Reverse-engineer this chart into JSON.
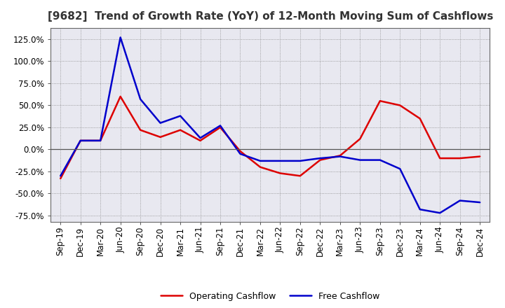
{
  "title": "[9682]  Trend of Growth Rate (YoY) of 12-Month Moving Sum of Cashflows",
  "labels": [
    "Sep-19",
    "Dec-19",
    "Mar-20",
    "Jun-20",
    "Sep-20",
    "Dec-20",
    "Mar-21",
    "Jun-21",
    "Sep-21",
    "Dec-21",
    "Mar-22",
    "Jun-22",
    "Sep-22",
    "Dec-22",
    "Mar-23",
    "Jun-23",
    "Sep-23",
    "Dec-23",
    "Mar-24",
    "Jun-24",
    "Sep-24",
    "Dec-24"
  ],
  "operating_cashflow": [
    -0.33,
    0.1,
    0.1,
    0.6,
    0.22,
    0.14,
    0.22,
    0.1,
    0.25,
    -0.02,
    -0.2,
    -0.27,
    -0.3,
    -0.12,
    -0.07,
    0.12,
    0.55,
    0.5,
    0.35,
    -0.1,
    -0.1,
    -0.08
  ],
  "free_cashflow": [
    -0.3,
    0.1,
    0.1,
    1.27,
    0.57,
    0.3,
    0.38,
    0.13,
    0.27,
    -0.05,
    -0.13,
    -0.13,
    -0.13,
    -0.1,
    -0.08,
    -0.12,
    -0.12,
    -0.22,
    -0.68,
    -0.72,
    -0.58,
    -0.6
  ],
  "ylim": [
    -0.82,
    1.38
  ],
  "yticks": [
    -0.75,
    -0.5,
    -0.25,
    0.0,
    0.25,
    0.5,
    0.75,
    1.0,
    1.25
  ],
  "operating_color": "#dd0000",
  "free_color": "#0000cc",
  "plot_bg_color": "#e8e8f0",
  "fig_bg_color": "#ffffff",
  "grid_color": "#aaaaaa",
  "title_color": "#333333",
  "legend_operating": "Operating Cashflow",
  "legend_free": "Free Cashflow",
  "title_fontsize": 11,
  "tick_fontsize": 8.5,
  "line_width": 1.8
}
